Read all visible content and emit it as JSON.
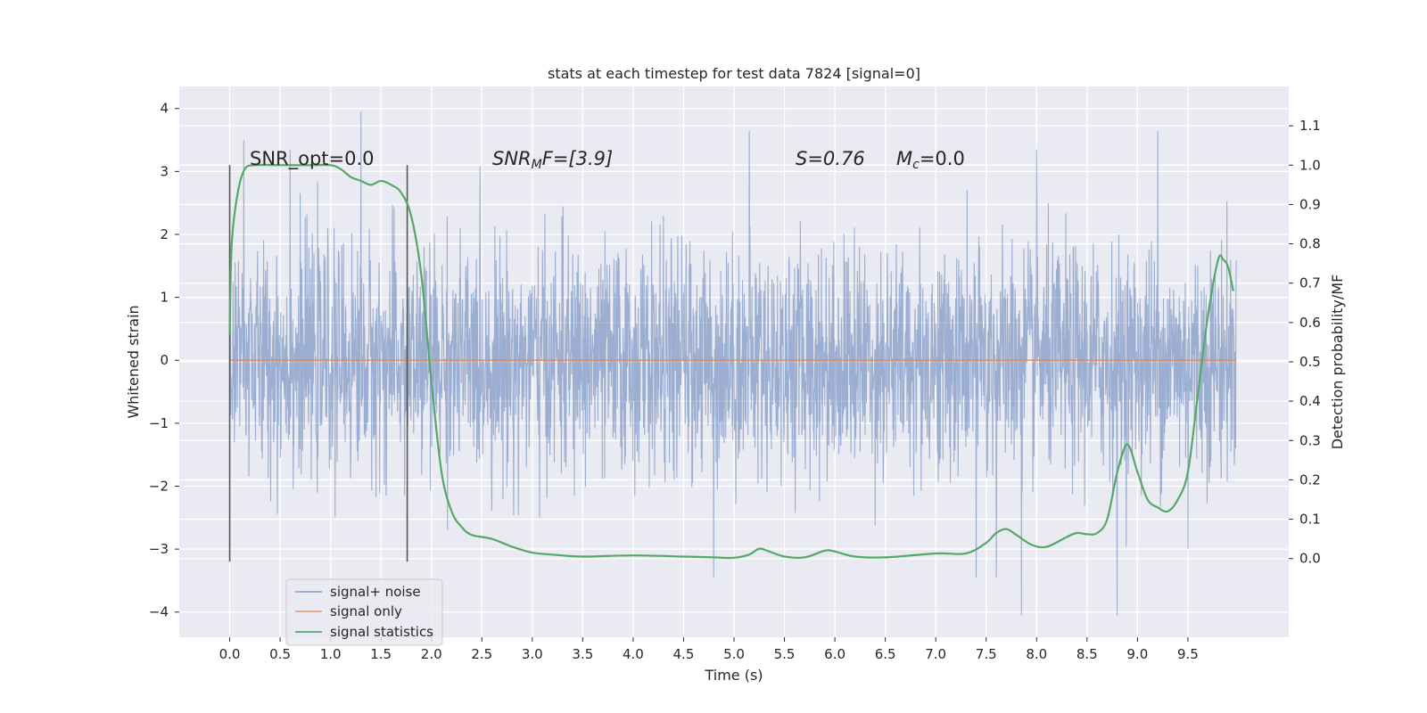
{
  "chart_data": {
    "type": "line",
    "title": "stats at each timestep for test data 7824 [signal=0]",
    "xlabel": "Time (s)",
    "ylabel": "Whitened strain",
    "ylabel_right": "Detection probability/MF",
    "xlim": [
      -0.5,
      10.5
    ],
    "ylim": [
      -4.4,
      4.35
    ],
    "ylim_right": [
      -0.2,
      1.2
    ],
    "x_ticks": [
      "0.0",
      "0.5",
      "1.0",
      "1.5",
      "2.0",
      "2.5",
      "3.0",
      "3.5",
      "4.0",
      "4.5",
      "5.0",
      "5.5",
      "6.0",
      "6.5",
      "7.0",
      "7.5",
      "8.0",
      "8.5",
      "9.0",
      "9.5"
    ],
    "y_ticks": [
      "4",
      "3",
      "2",
      "1",
      "0",
      "−1",
      "−2",
      "−3",
      "−4"
    ],
    "y_ticks_right": [
      "1.1",
      "1.0",
      "0.9",
      "0.8",
      "0.7",
      "0.6",
      "0.5",
      "0.4",
      "0.3",
      "0.2",
      "0.1",
      "0.0"
    ],
    "grid": true,
    "colors": {
      "noise": "#4c72b0",
      "signal": "#dd8452",
      "stats": "#55a868",
      "background": "#eaeaf2",
      "grid": "#ffffff",
      "text": "#262626"
    },
    "annotations": {
      "snr_opt": "SNR_opt=0.0",
      "snr_mf_base": "SNR",
      "snr_mf_sub": "M",
      "snr_mf_rest": "F=[3.9]",
      "stat_s": "S=0.76",
      "mc_base": "M",
      "mc_sub": "c",
      "mc_rest": "=0.0"
    },
    "vertical_markers": [
      0.0,
      1.76
    ],
    "series": [
      {
        "name": "signal+ noise",
        "axis": "left",
        "x_range": [
          0.0,
          9.98
        ],
        "envelope": {
          "p99": 2.3,
          "min": -4.05,
          "max": 3.95
        },
        "peaks": [
          {
            "x": 1.3,
            "y": 3.95
          },
          {
            "x": 0.14,
            "y": 3.5
          },
          {
            "x": 5.15,
            "y": 3.65
          },
          {
            "x": 9.2,
            "y": 3.65
          },
          {
            "x": 8.0,
            "y": 3.35
          },
          {
            "x": 0.6,
            "y": 3.35
          },
          {
            "x": 7.85,
            "y": -4.05
          },
          {
            "x": 8.8,
            "y": -4.05
          },
          {
            "x": 4.8,
            "y": -3.45
          },
          {
            "x": 7.4,
            "y": -3.45
          },
          {
            "x": 7.6,
            "y": -3.45
          },
          {
            "x": 9.5,
            "y": -3.0
          }
        ]
      },
      {
        "name": "signal only",
        "axis": "left",
        "x": [
          0.0,
          9.98
        ],
        "y": [
          0.0,
          0.0
        ]
      },
      {
        "name": "signal statistics",
        "axis": "right",
        "x": [
          0.0,
          0.02,
          0.08,
          0.15,
          0.25,
          0.5,
          0.8,
          1.0,
          1.1,
          1.2,
          1.3,
          1.4,
          1.5,
          1.6,
          1.7,
          1.8,
          1.9,
          2.0,
          2.1,
          2.2,
          2.3,
          2.4,
          2.6,
          2.8,
          3.0,
          3.2,
          3.5,
          4.0,
          4.5,
          4.8,
          5.0,
          5.15,
          5.25,
          5.35,
          5.5,
          5.7,
          5.9,
          6.0,
          6.2,
          6.5,
          7.0,
          7.3,
          7.5,
          7.6,
          7.7,
          7.8,
          7.95,
          8.1,
          8.3,
          8.4,
          8.5,
          8.6,
          8.7,
          8.8,
          8.9,
          9.0,
          9.1,
          9.2,
          9.3,
          9.4,
          9.5,
          9.6,
          9.7,
          9.8,
          9.85,
          9.9,
          9.95
        ],
        "y": [
          0.57,
          0.8,
          0.93,
          0.99,
          1.0,
          1.0,
          1.0,
          1.0,
          0.99,
          0.97,
          0.96,
          0.95,
          0.96,
          0.95,
          0.93,
          0.87,
          0.72,
          0.45,
          0.22,
          0.12,
          0.08,
          0.06,
          0.05,
          0.03,
          0.015,
          0.01,
          0.005,
          0.008,
          0.005,
          0.003,
          0.002,
          0.01,
          0.025,
          0.018,
          0.005,
          0.003,
          0.02,
          0.018,
          0.005,
          0.003,
          0.013,
          0.013,
          0.04,
          0.065,
          0.075,
          0.06,
          0.035,
          0.03,
          0.055,
          0.065,
          0.062,
          0.065,
          0.1,
          0.22,
          0.29,
          0.22,
          0.15,
          0.13,
          0.12,
          0.15,
          0.22,
          0.42,
          0.62,
          0.76,
          0.76,
          0.74,
          0.68
        ]
      }
    ],
    "legend": {
      "placement": "lower-left",
      "entries": [
        "signal+ noise",
        "signal only",
        "signal statistics"
      ]
    }
  }
}
